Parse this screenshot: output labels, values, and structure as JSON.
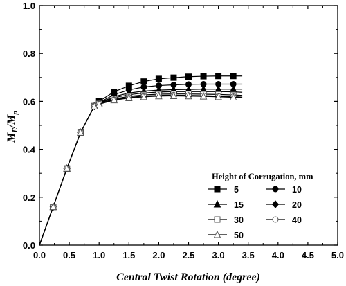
{
  "chart_data": {
    "type": "line",
    "xlabel": "Central Twist Rotation (degree)",
    "ylabel": "M_E/M_p",
    "ylabel_parts": {
      "m1": "M",
      "s1": "E",
      "slash": "/",
      "m2": "M",
      "s2": "p"
    },
    "xlim": [
      0,
      5
    ],
    "ylim": [
      0,
      1
    ],
    "xticks": [
      "0.0",
      "0.5",
      "1.0",
      "1.5",
      "2.0",
      "2.5",
      "3.0",
      "3.5",
      "4.0",
      "4.5",
      "5.0"
    ],
    "yticks": [
      "0.0",
      "0.2",
      "0.4",
      "0.6",
      "0.8",
      "1.0"
    ],
    "grid": false,
    "legend": {
      "title": "Height of Corrugation, mm",
      "placement": "bottom-right"
    },
    "series": [
      {
        "name": "5",
        "marker": "square-filled",
        "x": [
          0,
          0.23,
          0.46,
          0.69,
          0.92,
          1.0,
          1.25,
          1.5,
          1.75,
          2.0,
          2.25,
          2.5,
          2.75,
          3.0,
          3.25,
          3.4
        ],
        "y": [
          0,
          0.16,
          0.32,
          0.47,
          0.58,
          0.6,
          0.64,
          0.665,
          0.683,
          0.694,
          0.699,
          0.703,
          0.705,
          0.706,
          0.706,
          0.706
        ]
      },
      {
        "name": "10",
        "marker": "circle-filled",
        "x": [
          0,
          0.23,
          0.46,
          0.69,
          0.92,
          1.0,
          1.25,
          1.5,
          1.75,
          2.0,
          2.25,
          2.5,
          2.75,
          3.0,
          3.25,
          3.4
        ],
        "y": [
          0,
          0.16,
          0.32,
          0.47,
          0.58,
          0.595,
          0.628,
          0.648,
          0.66,
          0.666,
          0.669,
          0.671,
          0.672,
          0.672,
          0.672,
          0.672
        ]
      },
      {
        "name": "15",
        "marker": "triangle-filled",
        "x": [
          0,
          0.23,
          0.46,
          0.69,
          0.92,
          1.0,
          1.25,
          1.5,
          1.75,
          2.0,
          2.25,
          2.5,
          2.75,
          3.0,
          3.25,
          3.4
        ],
        "y": [
          0,
          0.16,
          0.32,
          0.47,
          0.58,
          0.593,
          0.62,
          0.635,
          0.643,
          0.647,
          0.649,
          0.65,
          0.651,
          0.651,
          0.651,
          0.651
        ]
      },
      {
        "name": "20",
        "marker": "diamond-filled",
        "x": [
          0,
          0.23,
          0.46,
          0.69,
          0.92,
          1.0,
          1.25,
          1.5,
          1.75,
          2.0,
          2.25,
          2.5,
          2.75,
          3.0,
          3.25,
          3.4
        ],
        "y": [
          0,
          0.16,
          0.32,
          0.47,
          0.58,
          0.592,
          0.615,
          0.628,
          0.635,
          0.639,
          0.641,
          0.641,
          0.641,
          0.641,
          0.64,
          0.638
        ]
      },
      {
        "name": "30",
        "marker": "square-open",
        "x": [
          0,
          0.23,
          0.46,
          0.69,
          0.92,
          1.0,
          1.25,
          1.5,
          1.75,
          2.0,
          2.25,
          2.5,
          2.75,
          3.0,
          3.25,
          3.4
        ],
        "y": [
          0,
          0.16,
          0.32,
          0.47,
          0.58,
          0.59,
          0.61,
          0.621,
          0.627,
          0.63,
          0.631,
          0.631,
          0.63,
          0.629,
          0.627,
          0.625
        ]
      },
      {
        "name": "40",
        "marker": "circle-open",
        "x": [
          0,
          0.23,
          0.46,
          0.69,
          0.92,
          1.0,
          1.25,
          1.5,
          1.75,
          2.0,
          2.25,
          2.5,
          2.75,
          3.0,
          3.25,
          3.4
        ],
        "y": [
          0,
          0.16,
          0.32,
          0.47,
          0.58,
          0.589,
          0.607,
          0.617,
          0.622,
          0.625,
          0.626,
          0.625,
          0.624,
          0.622,
          0.62,
          0.618
        ]
      },
      {
        "name": "50",
        "marker": "triangle-open",
        "x": [
          0,
          0.23,
          0.46,
          0.69,
          0.92,
          1.0,
          1.25,
          1.5,
          1.75,
          2.0,
          2.25,
          2.5,
          2.75,
          3.0,
          3.25,
          3.4
        ],
        "y": [
          0,
          0.16,
          0.32,
          0.47,
          0.58,
          0.588,
          0.605,
          0.614,
          0.619,
          0.622,
          0.623,
          0.622,
          0.621,
          0.619,
          0.617,
          0.615
        ]
      }
    ]
  }
}
